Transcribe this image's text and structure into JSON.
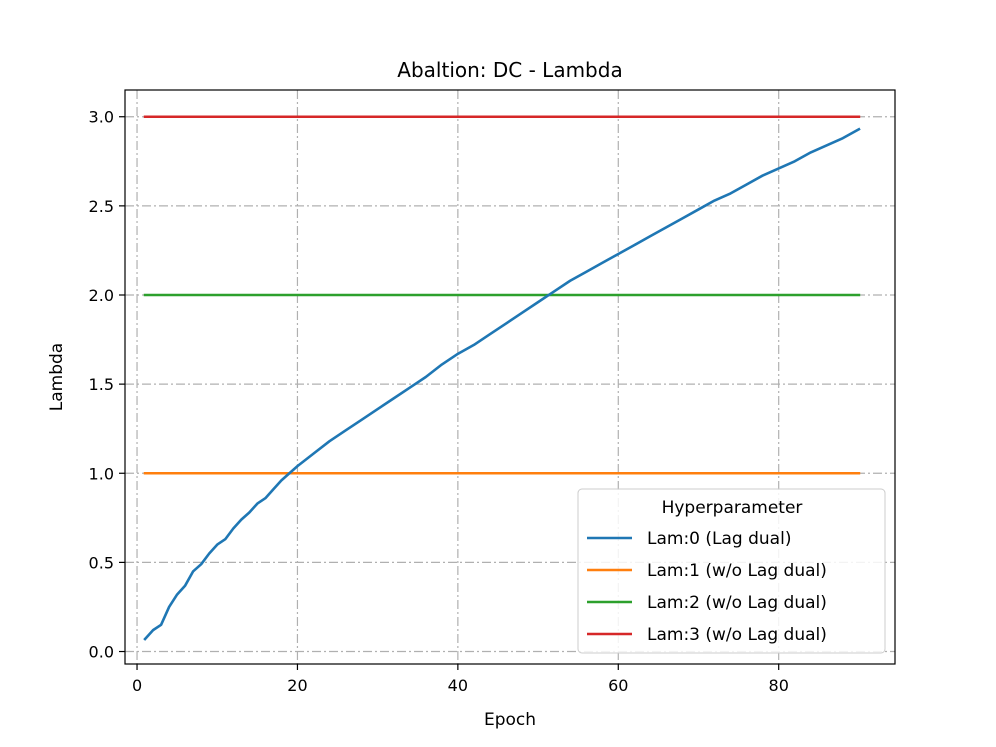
{
  "chart_data": {
    "type": "line",
    "title": "Abaltion: DC - Lambda",
    "xlabel": "Epoch",
    "ylabel": "Lambda",
    "xlim": [
      -1.5,
      94.5
    ],
    "ylim": [
      -0.07,
      3.15
    ],
    "xticks": [
      0,
      20,
      40,
      60,
      80
    ],
    "xtick_labels": [
      "0",
      "20",
      "40",
      "60",
      "80"
    ],
    "yticks": [
      0.0,
      0.5,
      1.0,
      1.5,
      2.0,
      2.5,
      3.0
    ],
    "ytick_labels": [
      "0.0",
      "0.5",
      "1.0",
      "1.5",
      "2.0",
      "2.5",
      "3.0"
    ],
    "grid": true,
    "legend_title": "Hyperparameter",
    "legend_position": "lower-right",
    "series": [
      {
        "name": "Lam:0 (Lag dual)",
        "color": "#1f77b4",
        "x": [
          1,
          2,
          3,
          4,
          5,
          6,
          7,
          8,
          9,
          10,
          11,
          12,
          13,
          14,
          15,
          16,
          17,
          18,
          19,
          20,
          22,
          24,
          26,
          28,
          30,
          32,
          34,
          36,
          38,
          40,
          42,
          44,
          46,
          48,
          50,
          52,
          54,
          56,
          58,
          60,
          62,
          64,
          66,
          68,
          70,
          72,
          74,
          76,
          78,
          80,
          82,
          84,
          86,
          88,
          90
        ],
        "y": [
          0.07,
          0.12,
          0.15,
          0.25,
          0.32,
          0.37,
          0.45,
          0.49,
          0.55,
          0.6,
          0.63,
          0.69,
          0.74,
          0.78,
          0.83,
          0.86,
          0.91,
          0.96,
          1.0,
          1.04,
          1.11,
          1.18,
          1.24,
          1.3,
          1.36,
          1.42,
          1.48,
          1.54,
          1.61,
          1.67,
          1.72,
          1.78,
          1.84,
          1.9,
          1.96,
          2.02,
          2.08,
          2.13,
          2.18,
          2.23,
          2.28,
          2.33,
          2.38,
          2.43,
          2.48,
          2.53,
          2.57,
          2.62,
          2.67,
          2.71,
          2.75,
          2.8,
          2.84,
          2.88,
          2.93
        ]
      },
      {
        "name": "Lam:1 (w/o Lag dual)",
        "color": "#ff7f0e",
        "x": [
          1,
          90
        ],
        "y": [
          1.0,
          1.0
        ]
      },
      {
        "name": "Lam:2 (w/o Lag dual)",
        "color": "#2ca02c",
        "x": [
          1,
          90
        ],
        "y": [
          2.0,
          2.0
        ]
      },
      {
        "name": "Lam:3 (w/o Lag dual)",
        "color": "#d62728",
        "x": [
          1,
          90
        ],
        "y": [
          3.0,
          3.0
        ]
      }
    ]
  }
}
